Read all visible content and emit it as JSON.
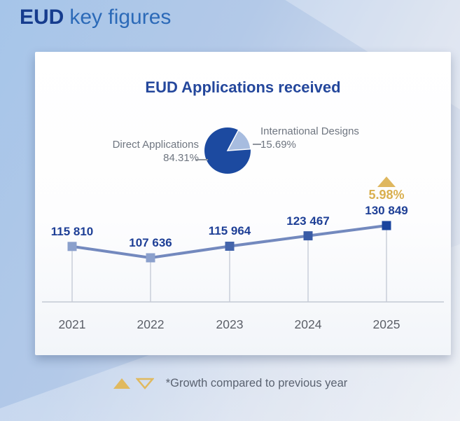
{
  "header": {
    "title_bold": "EUD",
    "title_rest": "key figures"
  },
  "card": {
    "title": "EUD Applications received"
  },
  "chart_data": {
    "type": "line",
    "title": "EUD Applications received",
    "x": [
      "2021",
      "2022",
      "2023",
      "2024",
      "2025"
    ],
    "values": [
      115810,
      107636,
      115964,
      123467,
      130849
    ],
    "value_labels": [
      "115 810",
      "107 636",
      "115 964",
      "123 467",
      "130 849"
    ],
    "ylim": [
      100000,
      135000
    ],
    "grid": false,
    "legend": "none",
    "marker": "square",
    "marker_colors": [
      "#8BA0CC",
      "#8BA0CC",
      "#4465AB",
      "#3A5CA6",
      "#1A449E"
    ],
    "line_color": "#7389BE",
    "growth": {
      "value": "5.98%",
      "direction": "up",
      "applies_to": "2025",
      "color": "#D9AF4E"
    },
    "pie": {
      "type": "pie",
      "slices": [
        {
          "label": "Direct Applications",
          "pct": "84.31%",
          "value": 84.31,
          "color": "#1C4AA0"
        },
        {
          "label": "International Designs",
          "pct": "15.69%",
          "value": 15.69,
          "color": "#A7BCDF"
        }
      ]
    }
  },
  "footer": {
    "note": "*Growth compared to previous year"
  },
  "colors": {
    "accent_blue": "#1E3F96",
    "title_blue": "#2C6AB8",
    "gold": "#D9AF4E",
    "background_blue": "#A6C5E9",
    "gray_text": "#6F7680"
  }
}
